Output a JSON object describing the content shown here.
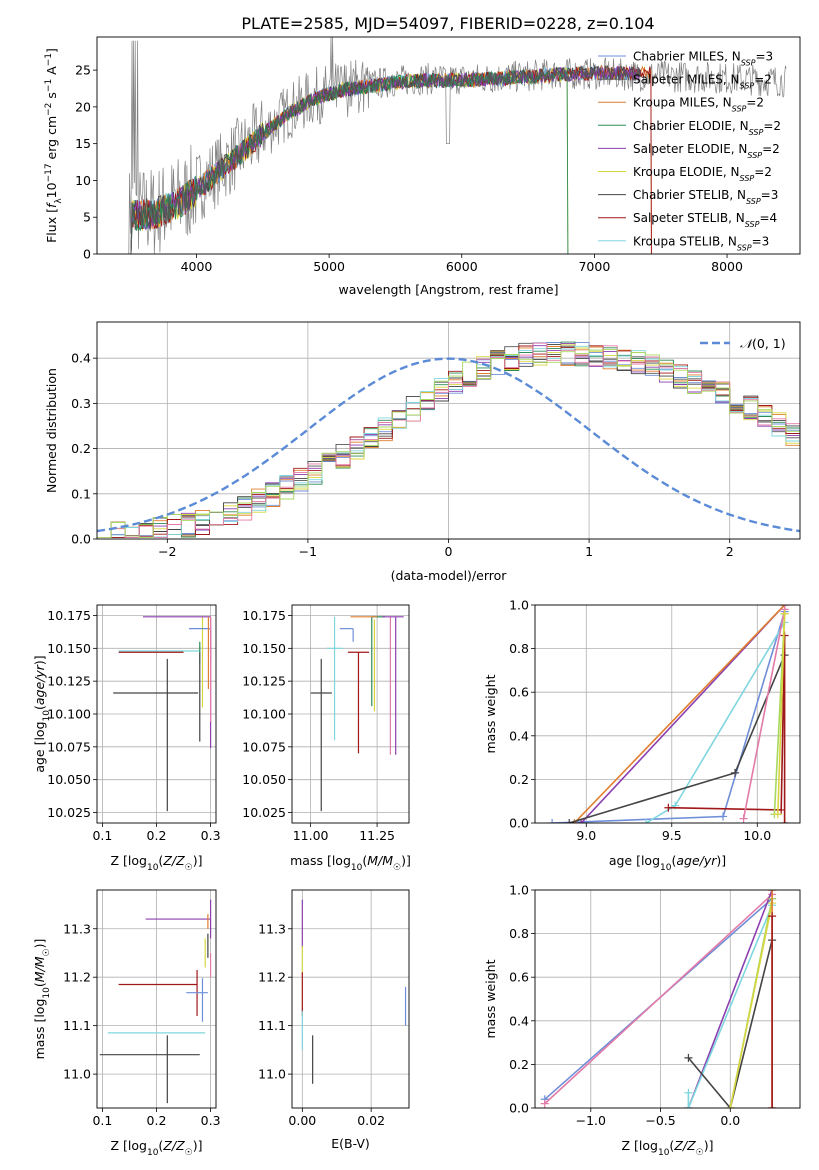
{
  "title": "PLATE=2585, MJD=54097, FIBERID=0228, z=0.104",
  "colors": {
    "chabrier_miles": "#6f8ed8",
    "salpeter_miles": "#555555",
    "kroupa_miles": "#e07f2f",
    "chabrier_elodie": "#2e8b57",
    "salpeter_elodie": "#8b3fb0",
    "kroupa_elodie": "#d8d640",
    "chabrier_stelib": "#444444",
    "salpeter_stelib": "#a01818",
    "kroupa_stelib": "#7fd6de",
    "pink": "#e37aa8",
    "lime": "#a8d860",
    "normal_curve": "#5b8bd6",
    "data_grey": "#808080",
    "grid": "#b0b0b0"
  },
  "chart_data": [
    {
      "id": "spectrum",
      "type": "line",
      "xlabel": "wavelength [Angstrom, rest frame]",
      "ylabel": "Flux [f_λ 10^-17 erg cm^-2 s^-1 A^-1]",
      "xlim": [
        3250,
        8550
      ],
      "ylim": [
        0,
        29.5
      ],
      "xticks": [
        4000,
        5000,
        6000,
        7000,
        8000
      ],
      "yticks": [
        0,
        5,
        10,
        15,
        20,
        25
      ],
      "grid": false,
      "legend_position": "right",
      "legend": [
        {
          "label": "Chabrier MILES, N",
          "sub": "SSP",
          "suffix": "=3",
          "color_key": "chabrier_miles"
        },
        {
          "label": "Salpeter MILES, N",
          "sub": "SSP",
          "suffix": "=2",
          "color_key": "salpeter_miles"
        },
        {
          "label": "Kroupa MILES, N",
          "sub": "SSP",
          "suffix": "=2",
          "color_key": "kroupa_miles"
        },
        {
          "label": "Chabrier ELODIE, N",
          "sub": "SSP",
          "suffix": "=2",
          "color_key": "chabrier_elodie"
        },
        {
          "label": "Salpeter ELODIE, N",
          "sub": "SSP",
          "suffix": "=2",
          "color_key": "salpeter_elodie"
        },
        {
          "label": "Kroupa ELODIE, N",
          "sub": "SSP",
          "suffix": "=2",
          "color_key": "kroupa_elodie"
        },
        {
          "label": "Chabrier STELIB, N",
          "sub": "SSP",
          "suffix": "=3",
          "color_key": "chabrier_stelib"
        },
        {
          "label": "Salpeter STELIB, N",
          "sub": "SSP",
          "suffix": "=4",
          "color_key": "salpeter_stelib"
        },
        {
          "label": "Kroupa STELIB, N",
          "sub": "SSP",
          "suffix": "=3",
          "color_key": "kroupa_stelib"
        }
      ],
      "data_trend": {
        "x": [
          3500,
          3700,
          3900,
          4100,
          4300,
          4500,
          4700,
          4900,
          5100,
          5300,
          5500,
          5700,
          5900,
          6100,
          6300,
          6500,
          6700,
          6900,
          7100,
          7300,
          7500,
          7700,
          7900,
          8100,
          8300,
          8450
        ],
        "y": [
          5.5,
          5.8,
          7.5,
          10.5,
          13.5,
          16.5,
          19.5,
          21.5,
          22.5,
          23.0,
          23.5,
          23.8,
          23.8,
          23.8,
          24.0,
          24.2,
          24.5,
          24.5,
          24.5,
          24.3,
          24.2,
          24.1,
          24.0,
          23.8,
          23.6,
          23.5
        ]
      },
      "model_trend": {
        "x": [
          3500,
          3700,
          3900,
          4100,
          4300,
          4500,
          4700,
          4900,
          5100,
          5300,
          5500,
          5700,
          5900,
          6100,
          6300,
          6500,
          6700,
          6900,
          7100,
          7300
        ],
        "y": [
          5.2,
          5.5,
          7.2,
          10.2,
          13.2,
          16.3,
          19.2,
          21.2,
          22.3,
          22.8,
          23.3,
          23.6,
          23.6,
          23.7,
          23.9,
          24.1,
          24.4,
          24.5,
          24.6,
          24.5
        ]
      }
    },
    {
      "id": "residuals",
      "type": "histogram",
      "xlabel": "(data-model)/error",
      "ylabel": "Normed distribution",
      "xlim": [
        -2.5,
        2.5
      ],
      "ylim": [
        0,
        0.48
      ],
      "xticks": [
        -2,
        -1,
        0,
        1,
        2
      ],
      "yticks": [
        0.0,
        0.1,
        0.2,
        0.3,
        0.4
      ],
      "grid": true,
      "legend_position": "top-right",
      "legend_label": "N(0,1)",
      "bin_width": 0.1,
      "base": [
        0.011,
        0.013,
        0.016,
        0.019,
        0.023,
        0.027,
        0.031,
        0.036,
        0.044,
        0.055,
        0.068,
        0.083,
        0.098,
        0.113,
        0.129,
        0.146,
        0.164,
        0.182,
        0.201,
        0.222,
        0.243,
        0.266,
        0.288,
        0.309,
        0.329,
        0.348,
        0.364,
        0.378,
        0.39,
        0.4,
        0.406,
        0.409,
        0.411,
        0.41,
        0.408,
        0.406,
        0.403,
        0.398,
        0.392,
        0.383,
        0.373,
        0.361,
        0.348,
        0.335,
        0.321,
        0.305,
        0.289,
        0.271,
        0.252,
        0.23
      ]
    },
    {
      "id": "age_vs_Z",
      "type": "scatter",
      "xlabel": "Z [log10(Z/Z☉)]",
      "ylabel": "age [log10(age/yr)]",
      "xlim": [
        0.09,
        0.31
      ],
      "ylim": [
        10.017,
        10.183
      ],
      "xticks": [
        0.1,
        0.2,
        0.3
      ],
      "yticks": [
        10.025,
        10.05,
        10.075,
        10.1,
        10.125,
        10.15,
        10.175
      ],
      "grid": true,
      "points": [
        {
          "x": 0.22,
          "y": 10.116,
          "xerr": [
            0.1,
            0.057
          ],
          "yerr": [
            0.09,
            0.026
          ],
          "color_key": "chabrier_stelib"
        },
        {
          "x": 0.28,
          "y": 10.148,
          "xerr": [
            0.15,
            0.0
          ],
          "yerr": [
            0.01,
            0.004
          ],
          "color_key": "kroupa_stelib"
        },
        {
          "x": 0.25,
          "y": 10.147,
          "xerr": [
            0.12,
            0.0
          ],
          "yerr": [
            0.0,
            0.0
          ],
          "color_key": "salpeter_stelib"
        },
        {
          "x": 0.28,
          "y": 10.147,
          "xerr": [
            0.0,
            0.0
          ],
          "yerr": [
            0.068,
            0.0
          ],
          "color_key": "chabrier_stelib"
        },
        {
          "x": 0.28,
          "y": 10.147,
          "xerr": [
            0.0,
            0.0
          ],
          "yerr": [
            0.0,
            0.008
          ],
          "color_key": "chabrier_elodie"
        },
        {
          "x": 0.285,
          "y": 10.14,
          "xerr": [
            0.0,
            0.0
          ],
          "yerr": [
            0.035,
            0.034
          ],
          "color_key": "kroupa_elodie"
        },
        {
          "x": 0.3,
          "y": 10.165,
          "xerr": [
            0.04,
            0.0
          ],
          "yerr": [
            0.025,
            0.0
          ],
          "color_key": "chabrier_miles"
        },
        {
          "x": 0.3,
          "y": 10.174,
          "xerr": [
            0.125,
            0.0
          ],
          "yerr": [
            0.1,
            0.0
          ],
          "color_key": "salpeter_elodie"
        },
        {
          "x": 0.3,
          "y": 10.174,
          "xerr": [
            0.0,
            0.0
          ],
          "yerr": [
            0.08,
            0.0
          ],
          "color_key": "pink"
        },
        {
          "x": 0.296,
          "y": 10.174,
          "xerr": [
            0.0,
            0.0
          ],
          "yerr": [
            0.055,
            0.0
          ],
          "color_key": "kroupa_miles"
        }
      ]
    },
    {
      "id": "age_vs_mass",
      "type": "scatter",
      "xlabel": "mass [log10(M/M☉)]",
      "ylabel": "",
      "xlim": [
        10.93,
        11.37
      ],
      "ylim": [
        10.017,
        10.183
      ],
      "xticks": [
        11.0,
        11.25
      ],
      "yticks": [
        10.025,
        10.05,
        10.075,
        10.1,
        10.125,
        10.15,
        10.175
      ],
      "grid": true,
      "points": [
        {
          "x": 11.04,
          "y": 10.116,
          "xerr": [
            0.04,
            0.04
          ],
          "yerr": [
            0.09,
            0.026
          ],
          "color_key": "chabrier_stelib"
        },
        {
          "x": 11.09,
          "y": 10.15,
          "xerr": [
            0.03,
            0.03
          ],
          "yerr": [
            0.07,
            0.024
          ],
          "color_key": "kroupa_stelib"
        },
        {
          "x": 11.18,
          "y": 10.147,
          "xerr": [
            0.04,
            0.04
          ],
          "yerr": [
            0.077,
            0.0
          ],
          "color_key": "salpeter_stelib"
        },
        {
          "x": 11.16,
          "y": 10.165,
          "xerr": [
            0.05,
            0.0
          ],
          "yerr": [
            0.01,
            0.0
          ],
          "color_key": "chabrier_miles"
        },
        {
          "x": 11.24,
          "y": 10.172,
          "xerr": [
            0.0,
            0.0
          ],
          "yerr": [
            0.07,
            0.0
          ],
          "color_key": "kroupa_elodie"
        },
        {
          "x": 11.23,
          "y": 10.174,
          "xerr": [
            0.0,
            0.05
          ],
          "yerr": [
            0.068,
            0.0
          ],
          "color_key": "chabrier_elodie"
        },
        {
          "x": 11.25,
          "y": 10.174,
          "xerr": [
            0.1,
            0.0
          ],
          "yerr": [
            0.0,
            0.0
          ],
          "color_key": "kroupa_miles"
        },
        {
          "x": 11.3,
          "y": 10.174,
          "xerr": [
            0.0,
            0.0
          ],
          "yerr": [
            0.105,
            0.0
          ],
          "color_key": "pink"
        },
        {
          "x": 11.32,
          "y": 10.174,
          "xerr": [
            0.05,
            0.03
          ],
          "yerr": [
            0.105,
            0.0
          ],
          "color_key": "salpeter_elodie"
        }
      ]
    },
    {
      "id": "mass_weight_vs_age",
      "type": "line",
      "xlabel": "age [log10(age/yr)]",
      "ylabel": "mass weight",
      "xlim": [
        8.7,
        10.25
      ],
      "ylim": [
        0,
        1
      ],
      "xticks": [
        9.0,
        9.5,
        10.0
      ],
      "yticks": [
        0.0,
        0.2,
        0.4,
        0.6,
        0.8,
        1.0
      ],
      "grid": true,
      "series": [
        {
          "color_key": "chabrier_miles",
          "x": [
            8.8,
            9.8,
            10.16
          ],
          "y": [
            0.0,
            0.03,
            0.97
          ]
        },
        {
          "color_key": "salpeter_elodie",
          "x": [
            8.97,
            10.16
          ],
          "y": [
            0.0,
            1.0
          ]
        },
        {
          "color_key": "kroupa_miles",
          "x": [
            8.93,
            10.16
          ],
          "y": [
            0.0,
            1.0
          ]
        },
        {
          "color_key": "kroupa_stelib",
          "x": [
            9.35,
            9.52,
            10.16
          ],
          "y": [
            0.0,
            0.08,
            0.92
          ]
        },
        {
          "color_key": "chabrier_stelib",
          "x": [
            8.9,
            9.87,
            10.16
          ],
          "y": [
            0.0,
            0.23,
            0.77
          ]
        },
        {
          "color_key": "salpeter_stelib",
          "x": [
            9.48,
            10.14,
            10.16,
            10.16
          ],
          "y": [
            0.07,
            0.06,
            0.86,
            0.0
          ]
        },
        {
          "color_key": "pink",
          "x": [
            9.92,
            10.16
          ],
          "y": [
            0.02,
            0.98
          ]
        },
        {
          "color_key": "lime",
          "x": [
            10.1,
            10.16
          ],
          "y": [
            0.04,
            0.96
          ]
        },
        {
          "color_key": "kroupa_elodie",
          "x": [
            10.12,
            10.16
          ],
          "y": [
            0.04,
            0.96
          ]
        }
      ]
    },
    {
      "id": "mass_vs_Z",
      "type": "scatter",
      "xlabel": "Z [log10(Z/Z☉)]",
      "ylabel": "mass [log10(M/M☉)]",
      "xlim": [
        0.09,
        0.31
      ],
      "ylim": [
        10.93,
        11.38
      ],
      "xticks": [
        0.1,
        0.2,
        0.3
      ],
      "yticks": [
        11.0,
        11.1,
        11.2,
        11.3
      ],
      "grid": true,
      "points": [
        {
          "x": 0.22,
          "y": 11.04,
          "xerr": [
            0.125,
            0.06
          ],
          "yerr": [
            0.1,
            0.04
          ],
          "color_key": "chabrier_stelib"
        },
        {
          "x": 0.27,
          "y": 11.085,
          "xerr": [
            0.16,
            0.02
          ],
          "yerr": [
            0.0,
            0.0
          ],
          "color_key": "kroupa_stelib"
        },
        {
          "x": 0.275,
          "y": 11.185,
          "xerr": [
            0.145,
            0.0
          ],
          "yerr": [
            0.065,
            0.03
          ],
          "color_key": "salpeter_stelib"
        },
        {
          "x": 0.285,
          "y": 11.168,
          "xerr": [
            0.03,
            0.01
          ],
          "yerr": [
            0.06,
            0.03
          ],
          "color_key": "chabrier_miles"
        },
        {
          "x": 0.295,
          "y": 11.27,
          "xerr": [
            0.0,
            0.0
          ],
          "yerr": [
            0.03,
            0.02
          ],
          "color_key": "chabrier_stelib"
        },
        {
          "x": 0.29,
          "y": 11.25,
          "xerr": [
            0.0,
            0.0
          ],
          "yerr": [
            0.03,
            0.03
          ],
          "color_key": "kroupa_elodie"
        },
        {
          "x": 0.3,
          "y": 11.32,
          "xerr": [
            0.12,
            0.0
          ],
          "yerr": [
            0.04,
            0.04
          ],
          "color_key": "salpeter_elodie"
        },
        {
          "x": 0.3,
          "y": 11.25,
          "xerr": [
            0.0,
            0.0
          ],
          "yerr": [
            0.05,
            0.0
          ],
          "color_key": "pink"
        },
        {
          "x": 0.295,
          "y": 11.3,
          "xerr": [
            0.0,
            0.0
          ],
          "yerr": [
            0.0,
            0.03
          ],
          "color_key": "kroupa_miles"
        }
      ]
    },
    {
      "id": "mass_vs_ebv",
      "type": "scatter",
      "xlabel": "E(B-V)",
      "ylabel": "",
      "xlim": [
        -0.003,
        0.031
      ],
      "ylim": [
        10.93,
        11.38
      ],
      "xticks": [
        0.0,
        0.02
      ],
      "yticks": [
        11.0,
        11.1,
        11.2,
        11.3
      ],
      "grid": true,
      "points": [
        {
          "x": 0.0,
          "y": 11.3,
          "xerr": [
            0,
            0
          ],
          "yerr": [
            0.04,
            0.06
          ],
          "color_key": "salpeter_elodie"
        },
        {
          "x": 0.0,
          "y": 11.235,
          "xerr": [
            0,
            0
          ],
          "yerr": [
            0.03,
            0.03
          ],
          "color_key": "kroupa_elodie"
        },
        {
          "x": 0.0,
          "y": 11.17,
          "xerr": [
            0,
            0
          ],
          "yerr": [
            0.05,
            0.04
          ],
          "color_key": "salpeter_stelib"
        },
        {
          "x": 0.0,
          "y": 11.09,
          "xerr": [
            0,
            0
          ],
          "yerr": [
            0.04,
            0.04
          ],
          "color_key": "kroupa_stelib"
        },
        {
          "x": 0.003,
          "y": 11.04,
          "xerr": [
            0,
            0
          ],
          "yerr": [
            0.06,
            0.04
          ],
          "color_key": "chabrier_stelib"
        },
        {
          "x": 0.03,
          "y": 11.14,
          "xerr": [
            0,
            0
          ],
          "yerr": [
            0.04,
            0.04
          ],
          "color_key": "chabrier_miles"
        }
      ]
    },
    {
      "id": "mass_weight_vs_Z",
      "type": "line",
      "xlabel": "Z [log10(Z/Z☉)]",
      "ylabel": "mass weight",
      "xlim": [
        -1.4,
        0.5
      ],
      "ylim": [
        0,
        1
      ],
      "xticks": [
        -1.0,
        -0.5,
        0.0
      ],
      "yticks": [
        0.0,
        0.2,
        0.4,
        0.6,
        0.8,
        1.0
      ],
      "grid": true,
      "series": [
        {
          "color_key": "chabrier_miles",
          "x": [
            -1.33,
            0.3
          ],
          "y": [
            0.04,
            0.96
          ]
        },
        {
          "color_key": "pink",
          "x": [
            -1.33,
            0.3
          ],
          "y": [
            0.02,
            0.98
          ]
        },
        {
          "color_key": "salpeter_elodie",
          "x": [
            -0.3,
            0.3
          ],
          "y": [
            0.0,
            1.0
          ]
        },
        {
          "color_key": "kroupa_stelib",
          "x": [
            -0.3,
            -0.3,
            0.3
          ],
          "y": [
            0.07,
            0.0,
            0.93
          ]
        },
        {
          "color_key": "chabrier_stelib",
          "x": [
            -0.3,
            0.0,
            0.3
          ],
          "y": [
            0.23,
            0.0,
            0.77
          ]
        },
        {
          "color_key": "lime",
          "x": [
            0.0,
            0.3
          ],
          "y": [
            0.0,
            0.96
          ]
        },
        {
          "color_key": "kroupa_elodie",
          "x": [
            0.0,
            0.3
          ],
          "y": [
            0.0,
            0.94
          ]
        },
        {
          "color_key": "kroupa_miles",
          "x": [
            0.3,
            0.3
          ],
          "y": [
            0.0,
            1.0
          ]
        },
        {
          "color_key": "salpeter_stelib",
          "x": [
            0.3,
            0.3
          ],
          "y": [
            0.0,
            0.88
          ]
        }
      ]
    }
  ]
}
